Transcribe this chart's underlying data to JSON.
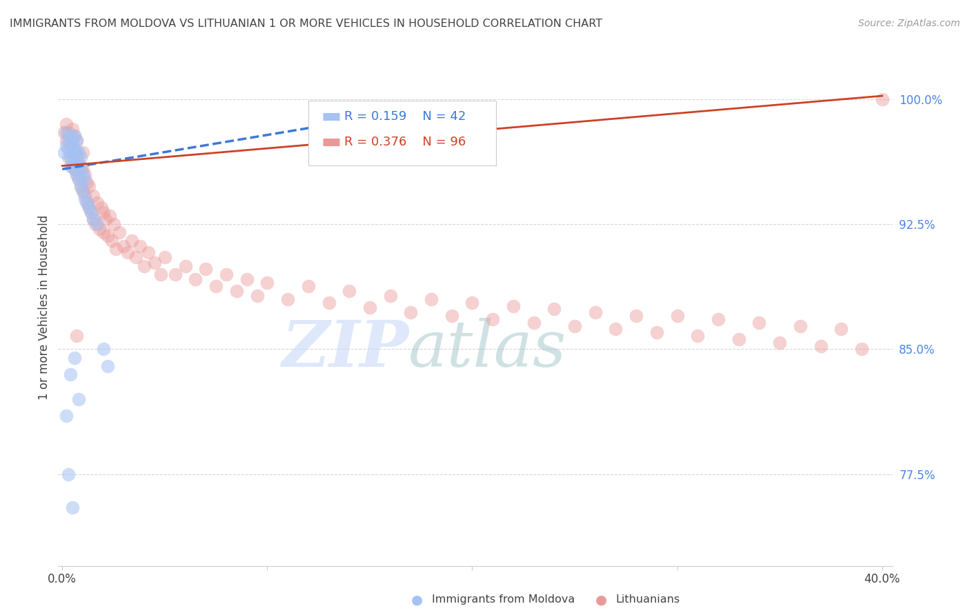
{
  "title": "IMMIGRANTS FROM MOLDOVA VS LITHUANIAN 1 OR MORE VEHICLES IN HOUSEHOLD CORRELATION CHART",
  "source": "Source: ZipAtlas.com",
  "ylabel": "1 or more Vehicles in Household",
  "yticks": [
    0.775,
    0.85,
    0.925,
    1.0
  ],
  "ytick_labels": [
    "77.5%",
    "85.0%",
    "92.5%",
    "100.0%"
  ],
  "xlim": [
    -0.002,
    0.405
  ],
  "ylim": [
    0.72,
    1.03
  ],
  "blue_R": "0.159",
  "blue_N": "42",
  "pink_R": "0.376",
  "pink_N": "96",
  "blue_color": "#a4c2f4",
  "pink_color": "#ea9999",
  "blue_line_color": "#3c78d8",
  "pink_line_color": "#cc4125",
  "title_color": "#434343",
  "source_color": "#999999",
  "ylabel_color": "#434343",
  "ytick_color": "#4a86e8",
  "watermark_zip": "ZIP",
  "watermark_atlas": "atlas",
  "blue_scatter_x": [
    0.001,
    0.002,
    0.002,
    0.003,
    0.003,
    0.004,
    0.004,
    0.004,
    0.005,
    0.005,
    0.005,
    0.006,
    0.006,
    0.006,
    0.006,
    0.007,
    0.007,
    0.007,
    0.007,
    0.008,
    0.008,
    0.008,
    0.009,
    0.009,
    0.009,
    0.01,
    0.01,
    0.011,
    0.011,
    0.012,
    0.013,
    0.014,
    0.015,
    0.017,
    0.02,
    0.022,
    0.004,
    0.006,
    0.008,
    0.003,
    0.005,
    0.002
  ],
  "blue_scatter_y": [
    0.968,
    0.972,
    0.98,
    0.965,
    0.975,
    0.96,
    0.968,
    0.978,
    0.962,
    0.97,
    0.975,
    0.958,
    0.965,
    0.97,
    0.978,
    0.955,
    0.962,
    0.968,
    0.975,
    0.952,
    0.96,
    0.968,
    0.948,
    0.958,
    0.965,
    0.945,
    0.955,
    0.94,
    0.952,
    0.938,
    0.935,
    0.932,
    0.928,
    0.925,
    0.85,
    0.84,
    0.835,
    0.845,
    0.82,
    0.775,
    0.755,
    0.81
  ],
  "pink_scatter_x": [
    0.001,
    0.002,
    0.002,
    0.003,
    0.003,
    0.004,
    0.004,
    0.005,
    0.005,
    0.005,
    0.006,
    0.006,
    0.006,
    0.007,
    0.007,
    0.007,
    0.008,
    0.008,
    0.009,
    0.009,
    0.01,
    0.01,
    0.01,
    0.011,
    0.011,
    0.012,
    0.012,
    0.013,
    0.013,
    0.014,
    0.015,
    0.015,
    0.016,
    0.017,
    0.018,
    0.019,
    0.02,
    0.02,
    0.021,
    0.022,
    0.023,
    0.024,
    0.025,
    0.026,
    0.028,
    0.03,
    0.032,
    0.034,
    0.036,
    0.038,
    0.04,
    0.042,
    0.045,
    0.048,
    0.05,
    0.055,
    0.06,
    0.065,
    0.07,
    0.075,
    0.08,
    0.085,
    0.09,
    0.095,
    0.1,
    0.11,
    0.12,
    0.13,
    0.14,
    0.15,
    0.16,
    0.17,
    0.18,
    0.19,
    0.2,
    0.21,
    0.22,
    0.23,
    0.24,
    0.25,
    0.26,
    0.27,
    0.28,
    0.29,
    0.3,
    0.31,
    0.32,
    0.33,
    0.34,
    0.35,
    0.36,
    0.37,
    0.38,
    0.39,
    0.4,
    0.007
  ],
  "pink_scatter_y": [
    0.98,
    0.975,
    0.985,
    0.97,
    0.98,
    0.965,
    0.975,
    0.96,
    0.972,
    0.982,
    0.958,
    0.968,
    0.978,
    0.955,
    0.965,
    0.975,
    0.952,
    0.962,
    0.948,
    0.96,
    0.945,
    0.958,
    0.968,
    0.942,
    0.955,
    0.938,
    0.95,
    0.935,
    0.948,
    0.932,
    0.928,
    0.942,
    0.925,
    0.938,
    0.922,
    0.935,
    0.92,
    0.932,
    0.928,
    0.918,
    0.93,
    0.915,
    0.925,
    0.91,
    0.92,
    0.912,
    0.908,
    0.915,
    0.905,
    0.912,
    0.9,
    0.908,
    0.902,
    0.895,
    0.905,
    0.895,
    0.9,
    0.892,
    0.898,
    0.888,
    0.895,
    0.885,
    0.892,
    0.882,
    0.89,
    0.88,
    0.888,
    0.878,
    0.885,
    0.875,
    0.882,
    0.872,
    0.88,
    0.87,
    0.878,
    0.868,
    0.876,
    0.866,
    0.874,
    0.864,
    0.872,
    0.862,
    0.87,
    0.86,
    0.87,
    0.858,
    0.868,
    0.856,
    0.866,
    0.854,
    0.864,
    0.852,
    0.862,
    0.85,
    1.0,
    0.858
  ],
  "blue_line_x": [
    0.0,
    0.18
  ],
  "blue_line_y": [
    0.958,
    0.995
  ],
  "pink_line_x": [
    0.0,
    0.4
  ],
  "pink_line_y": [
    0.96,
    1.002
  ]
}
